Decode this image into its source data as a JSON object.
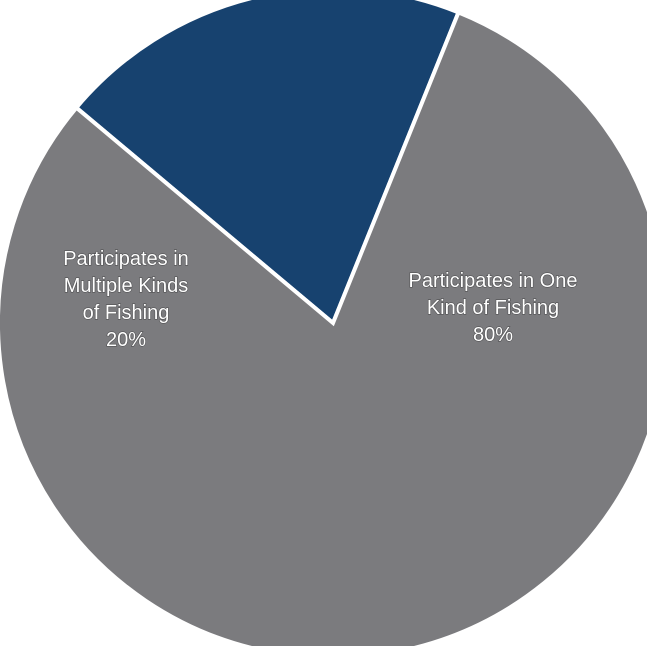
{
  "chart_data": {
    "type": "pie",
    "slices": [
      {
        "label_lines": [
          "Participates in",
          "Multiple Kinds",
          "of Fishing"
        ],
        "value": 20,
        "value_label": "20%",
        "color": "#17426f"
      },
      {
        "label_lines": [
          "Participates in One",
          "Kind of Fishing"
        ],
        "value": 80,
        "value_label": "80%",
        "color": "#7b7b7e"
      }
    ],
    "slice_border_color": "#ffffff"
  }
}
